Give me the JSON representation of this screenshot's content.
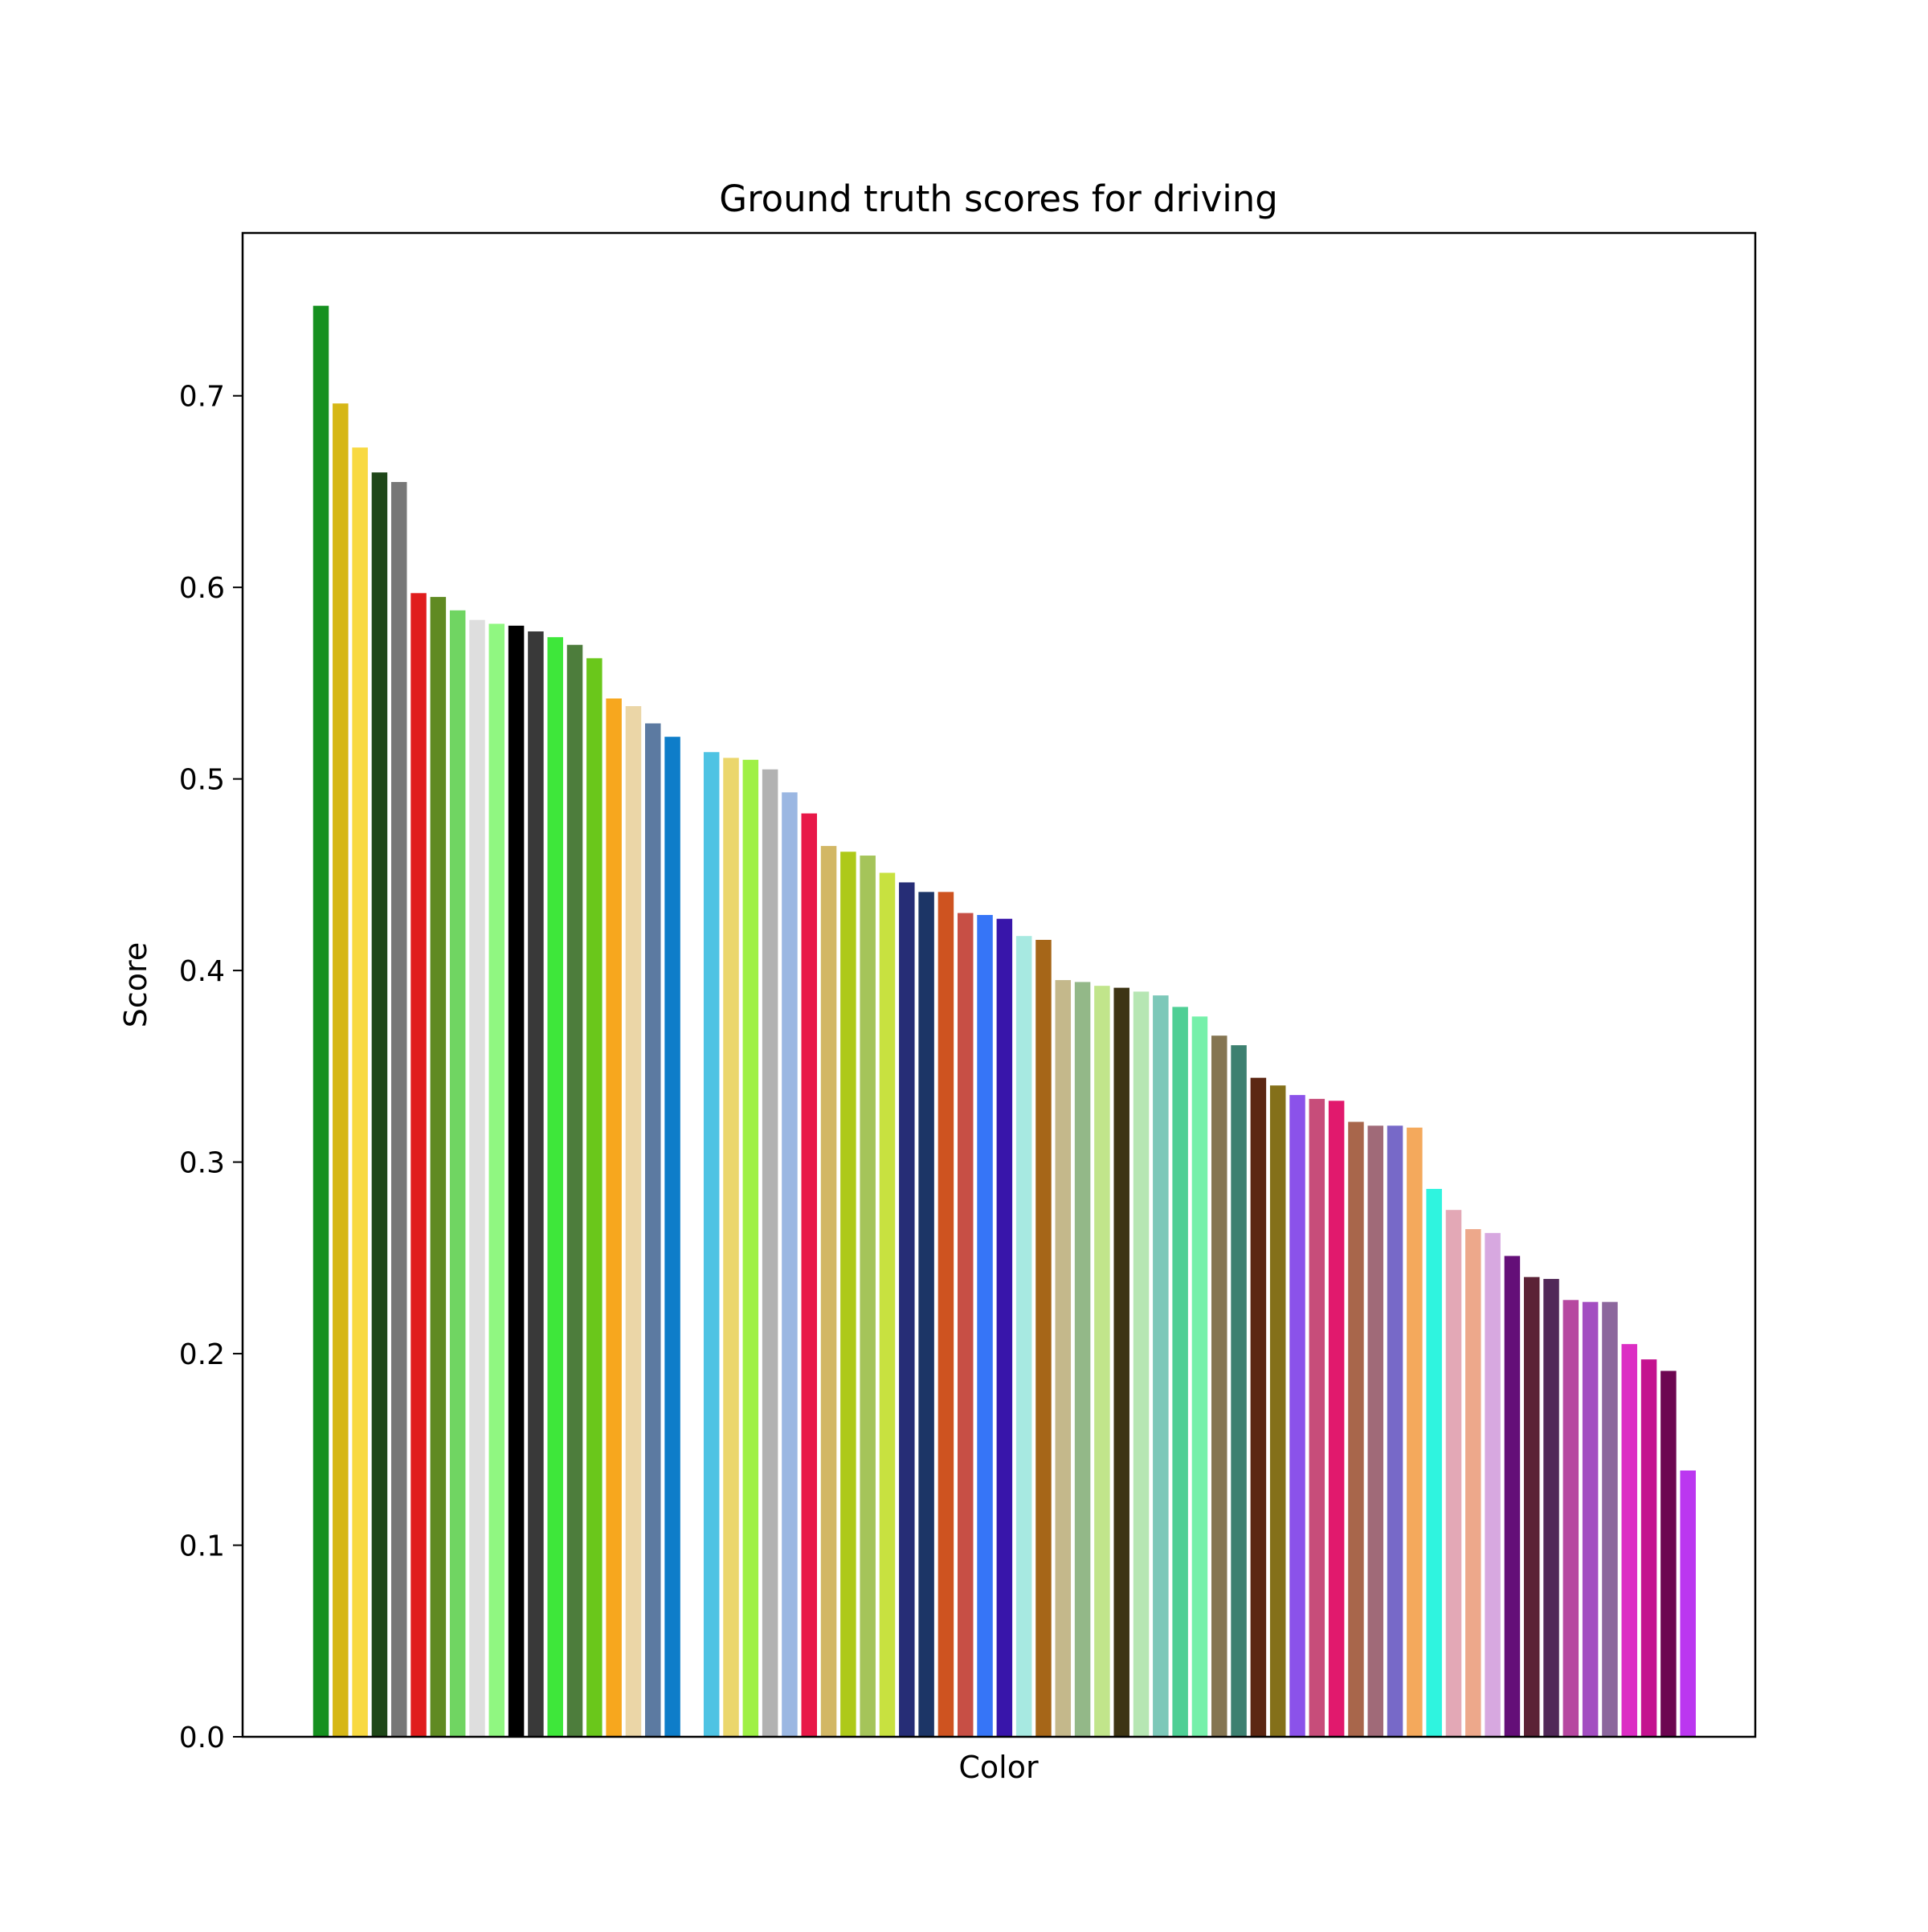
{
  "chart_data": {
    "type": "bar",
    "title": "Ground truth scores for driving",
    "xlabel": "Color",
    "ylabel": "Score",
    "ylim": [
      0,
      0.785
    ],
    "yticks": [
      "0.0",
      "0.1",
      "0.2",
      "0.3",
      "0.4",
      "0.5",
      "0.6",
      "0.7"
    ],
    "x_ticks_shown": false,
    "grid": false,
    "bars": [
      {
        "position": 0,
        "value": 0.747,
        "color": "#15901f"
      },
      {
        "position": 1,
        "value": 0.696,
        "color": "#d6b717"
      },
      {
        "position": 2,
        "value": 0.673,
        "color": "#f8d942"
      },
      {
        "position": 3,
        "value": 0.66,
        "color": "#1f4719"
      },
      {
        "position": 4,
        "value": 0.655,
        "color": "#777777"
      },
      {
        "position": 5,
        "value": 0.597,
        "color": "#e01d1d"
      },
      {
        "position": 6,
        "value": 0.595,
        "color": "#608a22"
      },
      {
        "position": 7,
        "value": 0.588,
        "color": "#70d562"
      },
      {
        "position": 8,
        "value": 0.583,
        "color": "#dedede"
      },
      {
        "position": 9,
        "value": 0.581,
        "color": "#90f781"
      },
      {
        "position": 10,
        "value": 0.58,
        "color": "#000000"
      },
      {
        "position": 11,
        "value": 0.577,
        "color": "#393939"
      },
      {
        "position": 12,
        "value": 0.574,
        "color": "#3ee73a"
      },
      {
        "position": 13,
        "value": 0.57,
        "color": "#4d7d3c"
      },
      {
        "position": 14,
        "value": 0.563,
        "color": "#6ac71b"
      },
      {
        "position": 15,
        "value": 0.542,
        "color": "#f7a71e"
      },
      {
        "position": 16,
        "value": 0.538,
        "color": "#ebd6a7"
      },
      {
        "position": 17,
        "value": 0.529,
        "color": "#5c7aa1"
      },
      {
        "position": 18,
        "value": 0.522,
        "color": "#0e7dc9"
      },
      {
        "position": 20,
        "value": 0.514,
        "color": "#4ec3e3"
      },
      {
        "position": 21,
        "value": 0.511,
        "color": "#ebd66c"
      },
      {
        "position": 22,
        "value": 0.51,
        "color": "#9ff046"
      },
      {
        "position": 23,
        "value": 0.505,
        "color": "#b2b2b2"
      },
      {
        "position": 24,
        "value": 0.493,
        "color": "#9bb7e2"
      },
      {
        "position": 25,
        "value": 0.482,
        "color": "#e81848"
      },
      {
        "position": 26,
        "value": 0.465,
        "color": "#d2b765"
      },
      {
        "position": 27,
        "value": 0.462,
        "color": "#aec919"
      },
      {
        "position": 28,
        "value": 0.46,
        "color": "#a5c45a"
      },
      {
        "position": 29,
        "value": 0.451,
        "color": "#c8e140"
      },
      {
        "position": 30,
        "value": 0.446,
        "color": "#262d76"
      },
      {
        "position": 31,
        "value": 0.441,
        "color": "#1c3566"
      },
      {
        "position": 32,
        "value": 0.441,
        "color": "#ce5320"
      },
      {
        "position": 33,
        "value": 0.43,
        "color": "#c74f45"
      },
      {
        "position": 34,
        "value": 0.429,
        "color": "#3675f7"
      },
      {
        "position": 35,
        "value": 0.427,
        "color": "#3815aa"
      },
      {
        "position": 36,
        "value": 0.418,
        "color": "#a7e9e1"
      },
      {
        "position": 37,
        "value": 0.416,
        "color": "#a66618"
      },
      {
        "position": 38,
        "value": 0.395,
        "color": "#c4b88b"
      },
      {
        "position": 39,
        "value": 0.394,
        "color": "#93b888"
      },
      {
        "position": 40,
        "value": 0.392,
        "color": "#c1e58b"
      },
      {
        "position": 41,
        "value": 0.391,
        "color": "#3d3414"
      },
      {
        "position": 42,
        "value": 0.389,
        "color": "#b6e6b3"
      },
      {
        "position": 43,
        "value": 0.387,
        "color": "#7dc8b9"
      },
      {
        "position": 44,
        "value": 0.381,
        "color": "#4fcf95"
      },
      {
        "position": 45,
        "value": 0.376,
        "color": "#76f0aa"
      },
      {
        "position": 46,
        "value": 0.366,
        "color": "#857552"
      },
      {
        "position": 47,
        "value": 0.361,
        "color": "#3d8070"
      },
      {
        "position": 48,
        "value": 0.344,
        "color": "#5c2713"
      },
      {
        "position": 49,
        "value": 0.34,
        "color": "#84701a"
      },
      {
        "position": 50,
        "value": 0.335,
        "color": "#8b52ea"
      },
      {
        "position": 51,
        "value": 0.333,
        "color": "#c74d7a"
      },
      {
        "position": 52,
        "value": 0.332,
        "color": "#e1196d"
      },
      {
        "position": 53,
        "value": 0.321,
        "color": "#a8664b"
      },
      {
        "position": 54,
        "value": 0.319,
        "color": "#a06a78"
      },
      {
        "position": 55,
        "value": 0.319,
        "color": "#7769c8"
      },
      {
        "position": 56,
        "value": 0.318,
        "color": "#f4a95c"
      },
      {
        "position": 57,
        "value": 0.286,
        "color": "#2ff4df"
      },
      {
        "position": 58,
        "value": 0.275,
        "color": "#e3a8b6"
      },
      {
        "position": 59,
        "value": 0.265,
        "color": "#eda88b"
      },
      {
        "position": 60,
        "value": 0.263,
        "color": "#d7a8e0"
      },
      {
        "position": 61,
        "value": 0.251,
        "color": "#640f78"
      },
      {
        "position": 62,
        "value": 0.24,
        "color": "#5b2236"
      },
      {
        "position": 63,
        "value": 0.239,
        "color": "#512958"
      },
      {
        "position": 64,
        "value": 0.228,
        "color": "#b648a0"
      },
      {
        "position": 65,
        "value": 0.227,
        "color": "#a34ec1"
      },
      {
        "position": 66,
        "value": 0.227,
        "color": "#8c679d"
      },
      {
        "position": 67,
        "value": 0.205,
        "color": "#dc2ec4"
      },
      {
        "position": 68,
        "value": 0.197,
        "color": "#c4128f"
      },
      {
        "position": 69,
        "value": 0.191,
        "color": "#6d0651"
      },
      {
        "position": 70,
        "value": 0.139,
        "color": "#bb37f0"
      }
    ]
  }
}
